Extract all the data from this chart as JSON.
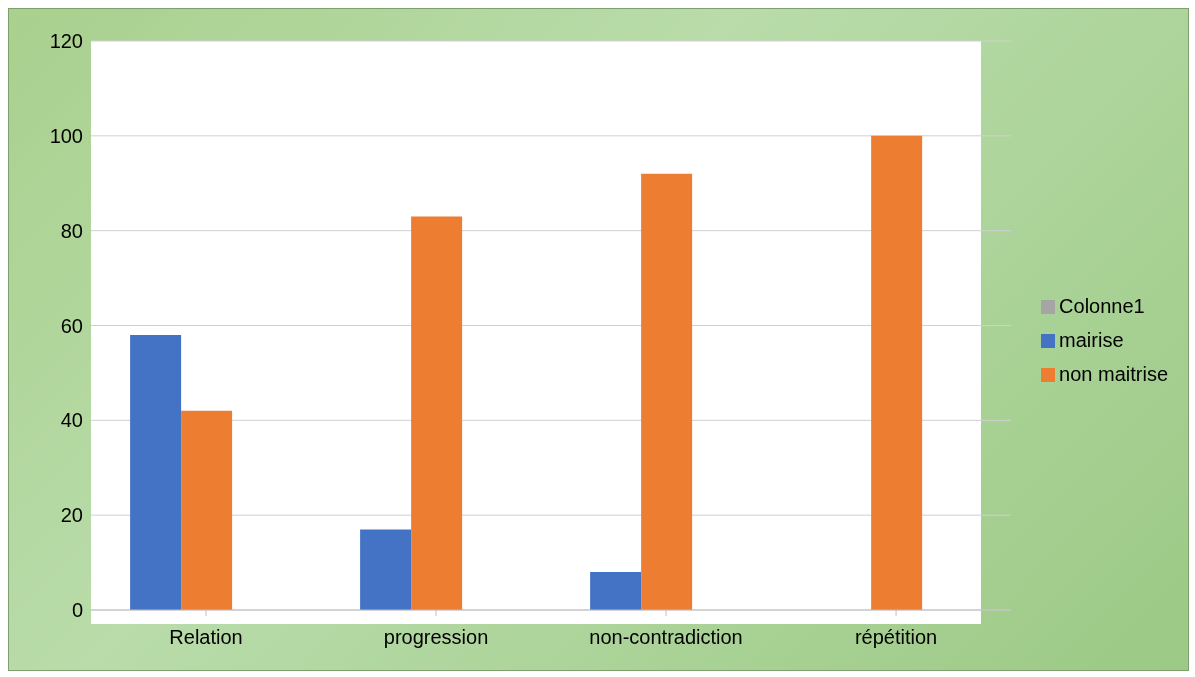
{
  "chart_data": {
    "type": "bar",
    "categories": [
      "Relation",
      "progression",
      "non-contradiction",
      "répétition"
    ],
    "series": [
      {
        "name": "mairise",
        "color": "#4472c4",
        "values": [
          58,
          17,
          8,
          0
        ]
      },
      {
        "name": "non maitrise",
        "color": "#ed7d31",
        "values": [
          42,
          83,
          92,
          100
        ]
      },
      {
        "name": "Colonne1",
        "color": "#a5a5a5",
        "values": [
          null,
          null,
          null,
          null
        ]
      }
    ],
    "ylim": [
      0,
      120
    ],
    "yticks": [
      0,
      20,
      40,
      60,
      80,
      100,
      120
    ],
    "grid": "y",
    "legend": "right"
  }
}
